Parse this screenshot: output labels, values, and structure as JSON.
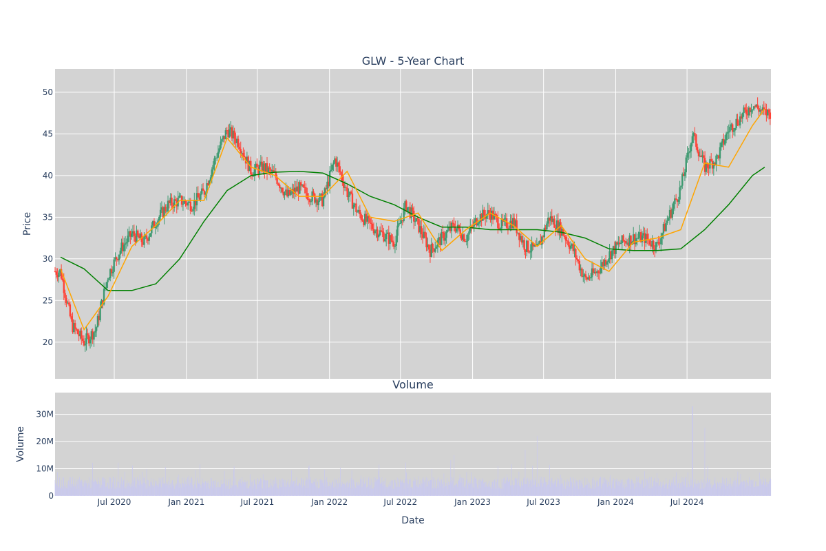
{
  "chart_data": [
    {
      "type": "candlestick",
      "title": "GLW - 5-Year Chart",
      "ylabel": "Price",
      "ylim": [
        15.6,
        52.8
      ],
      "yticks": [
        20,
        25,
        30,
        35,
        40,
        45,
        50
      ],
      "grid": true,
      "colors": {
        "up": "#3d9970",
        "down": "#ff4136",
        "ma_short": "#ffa500",
        "ma_long": "#008000",
        "background": "#d3d3d3",
        "grid": "#ffffff"
      },
      "series": [
        {
          "type": "candlestick",
          "x": [
            "2020-02",
            "2020-03",
            "2020-04",
            "2020-05",
            "2020-06",
            "2020-07",
            "2020-08",
            "2020-09",
            "2020-10",
            "2020-11",
            "2020-12",
            "2021-01",
            "2021-02",
            "2021-03",
            "2021-04",
            "2021-05",
            "2021-06",
            "2021-07",
            "2021-08",
            "2021-09",
            "2021-10",
            "2021-11",
            "2021-12",
            "2022-01",
            "2022-02",
            "2022-03",
            "2022-04",
            "2022-05",
            "2022-06",
            "2022-07",
            "2022-08",
            "2022-09",
            "2022-10",
            "2022-11",
            "2022-12",
            "2023-01",
            "2023-02",
            "2023-03",
            "2023-04",
            "2023-05",
            "2023-06",
            "2023-07",
            "2023-08",
            "2023-09",
            "2023-10",
            "2023-11",
            "2023-12",
            "2024-01",
            "2024-02",
            "2024-03",
            "2024-04",
            "2024-05",
            "2024-06",
            "2024-07",
            "2024-08",
            "2024-09",
            "2024-10",
            "2024-11",
            "2024-12",
            "2025-01"
          ],
          "close": [
            28.5,
            22.0,
            20.0,
            21.5,
            28.0,
            31.0,
            33.0,
            32.0,
            34.5,
            36.5,
            37.0,
            36.5,
            38.0,
            42.0,
            45.5,
            44.0,
            40.5,
            41.0,
            40.0,
            37.5,
            38.5,
            37.5,
            37.0,
            42.0,
            38.0,
            35.5,
            34.0,
            33.0,
            32.0,
            36.5,
            34.0,
            31.0,
            32.5,
            34.0,
            32.5,
            35.0,
            35.5,
            34.0,
            34.5,
            31.5,
            31.0,
            35.0,
            33.5,
            31.0,
            27.5,
            28.5,
            30.5,
            32.0,
            32.5,
            32.5,
            31.5,
            35.0,
            38.5,
            45.0,
            41.0,
            42.0,
            45.5,
            47.0,
            48.5,
            47.5
          ]
        },
        {
          "type": "line",
          "window": 20,
          "x": [
            "2020-02",
            "2020-04",
            "2020-06",
            "2020-08",
            "2020-10",
            "2020-12",
            "2021-02",
            "2021-04",
            "2021-06",
            "2021-08",
            "2021-10",
            "2021-12",
            "2022-02",
            "2022-04",
            "2022-06",
            "2022-08",
            "2022-10",
            "2022-12",
            "2023-02",
            "2023-04",
            "2023-06",
            "2023-08",
            "2023-10",
            "2023-12",
            "2024-02",
            "2024-04",
            "2024-06",
            "2024-08",
            "2024-10",
            "2024-12",
            "2025-01"
          ],
          "y": [
            28.8,
            21.5,
            25.5,
            31.5,
            34.0,
            37.0,
            37.0,
            44.5,
            41.0,
            40.0,
            37.5,
            37.5,
            40.5,
            35.0,
            34.5,
            35.5,
            31.0,
            33.5,
            35.5,
            34.0,
            31.5,
            34.0,
            30.0,
            28.5,
            32.0,
            32.5,
            33.5,
            41.5,
            41.0,
            46.0,
            48.0
          ]
        },
        {
          "type": "line",
          "window": 200,
          "x": [
            "2020-02",
            "2020-04",
            "2020-06",
            "2020-08",
            "2020-10",
            "2020-12",
            "2021-02",
            "2021-04",
            "2021-06",
            "2021-08",
            "2021-10",
            "2021-12",
            "2022-02",
            "2022-04",
            "2022-06",
            "2022-08",
            "2022-10",
            "2022-12",
            "2023-02",
            "2023-04",
            "2023-06",
            "2023-08",
            "2023-10",
            "2023-12",
            "2024-02",
            "2024-04",
            "2024-06",
            "2024-08",
            "2024-10",
            "2024-12",
            "2025-01"
          ],
          "y": [
            30.2,
            28.8,
            26.2,
            26.2,
            27.0,
            30.0,
            34.5,
            38.2,
            40.0,
            40.4,
            40.5,
            40.3,
            39.0,
            37.5,
            36.5,
            35.0,
            33.8,
            33.8,
            33.5,
            33.5,
            33.5,
            33.2,
            32.5,
            31.2,
            31.0,
            31.0,
            31.2,
            33.5,
            36.5,
            40.0,
            41.0
          ]
        }
      ]
    },
    {
      "type": "bar",
      "title": "Volume",
      "xlabel": "Date",
      "ylabel": "Volume",
      "ylim": [
        0,
        38000000
      ],
      "ytick_labels": [
        "0",
        "10M",
        "20M",
        "30M"
      ],
      "yticks": [
        0,
        10000000,
        20000000,
        30000000
      ],
      "x_tick_labels": [
        "Jul 2020",
        "Jan 2021",
        "Jul 2021",
        "Jan 2022",
        "Jul 2022",
        "Jan 2023",
        "Jul 2023",
        "Jan 2024",
        "Jul 2024"
      ],
      "colors": {
        "bar": "#c8c8f0"
      },
      "peaks": [
        {
          "x": "2022-11",
          "value": 15000000
        },
        {
          "x": "2023-05",
          "value": 17000000
        },
        {
          "x": "2023-06",
          "value": 22000000
        },
        {
          "x": "2024-07",
          "value": 33000000
        },
        {
          "x": "2024-08",
          "value": 25000000
        }
      ]
    }
  ]
}
